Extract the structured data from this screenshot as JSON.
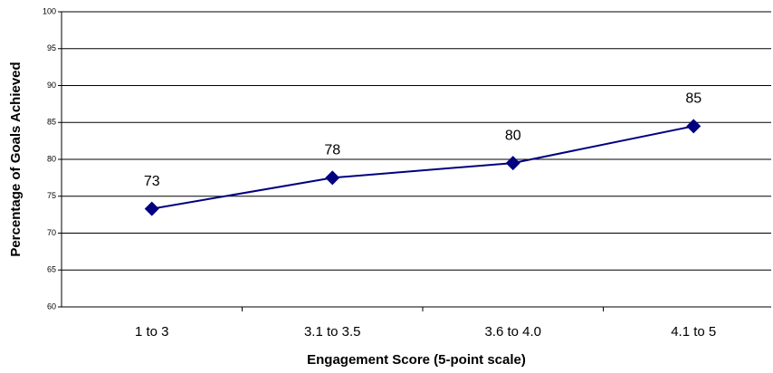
{
  "chart_data": {
    "type": "line",
    "x_label": "Engagement Score (5-point scale)",
    "y_label": "Percentage of Goals Achieved",
    "categories": [
      "1 to 3",
      "3.1 to 3.5",
      "3.6 to 4.0",
      "4.1 to 5"
    ],
    "values": [
      73.3,
      77.5,
      79.5,
      84.5
    ],
    "value_labels": [
      "73",
      "78",
      "80",
      "85"
    ],
    "color": "#000080",
    "ylim": [
      60,
      100
    ],
    "yticks": [
      60,
      65,
      70,
      75,
      80,
      85,
      90,
      95,
      100
    ],
    "grid": true
  }
}
